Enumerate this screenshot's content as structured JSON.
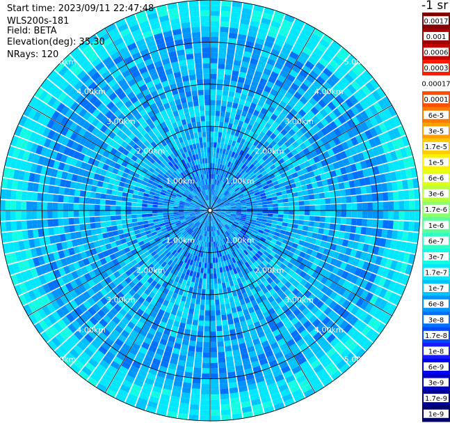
{
  "header": {
    "start_time": "Start time: 2023/09/11 22:47:48",
    "instrument": "WLS200s-181",
    "field": "Field: BETA",
    "elevation": "Elevation(deg): 35.30",
    "nrays": "NRays: 120"
  },
  "colorbar": {
    "unit_label": "-1 sr",
    "entries": [
      {
        "label": "0.0017",
        "color": "#7f0000"
      },
      {
        "label": "0.001",
        "color": "#a00000"
      },
      {
        "label": "0.0006",
        "color": "#c40000"
      },
      {
        "label": "0.0003",
        "color": "#ff1a00"
      },
      {
        "label": "0.00017",
        "color": "#ffffff"
      },
      {
        "label": "0.0001",
        "color": "#ff4e00"
      },
      {
        "label": "6e-5",
        "color": "#ff7a00"
      },
      {
        "label": "3e-5",
        "color": "#ff9e00"
      },
      {
        "label": "1.7e-5",
        "color": "#ffcc00"
      },
      {
        "label": "1e-5",
        "color": "#fff000"
      },
      {
        "label": "6e-6",
        "color": "#e3ff14"
      },
      {
        "label": "3e-6",
        "color": "#b8ff3f"
      },
      {
        "label": "1.7e-6",
        "color": "#8dff6a"
      },
      {
        "label": "1e-6",
        "color": "#5cff9b"
      },
      {
        "label": "6e-7",
        "color": "#33ffc4"
      },
      {
        "label": "3e-7",
        "color": "#13fce4"
      },
      {
        "label": "1.7e-7",
        "color": "#00e8ff"
      },
      {
        "label": "1e-7",
        "color": "#00c4ff"
      },
      {
        "label": "6e-8",
        "color": "#0094ff"
      },
      {
        "label": "3e-8",
        "color": "#0070ff"
      },
      {
        "label": "1.7e-8",
        "color": "#0048ff"
      },
      {
        "label": "1e-8",
        "color": "#1a1aff"
      },
      {
        "label": "6e-9",
        "color": "#0000ee"
      },
      {
        "label": "3e-9",
        "color": "#0000c4"
      },
      {
        "label": "1.7e-9",
        "color": "#000096"
      },
      {
        "label": "1e-9",
        "color": "#000066"
      }
    ]
  },
  "chart_data": {
    "type": "heatmap",
    "projection": "polar",
    "field": "BETA",
    "n_rays": 120,
    "ring_ranges_km": [
      1,
      2,
      3,
      4,
      5
    ],
    "ring_labels": [
      "1.00km",
      "2.00km",
      "3.00km",
      "4.00km",
      "5.00km"
    ],
    "max_range_km": 5.0,
    "radial_gridlines": 12,
    "color_scale": "log",
    "value_range": [
      "1e-9",
      "0.0017"
    ],
    "dominant_colors": [
      "#00e8ff",
      "#00c4ff",
      "#0094ff",
      "#0070ff",
      "#0048ff",
      "#13fce4"
    ]
  }
}
